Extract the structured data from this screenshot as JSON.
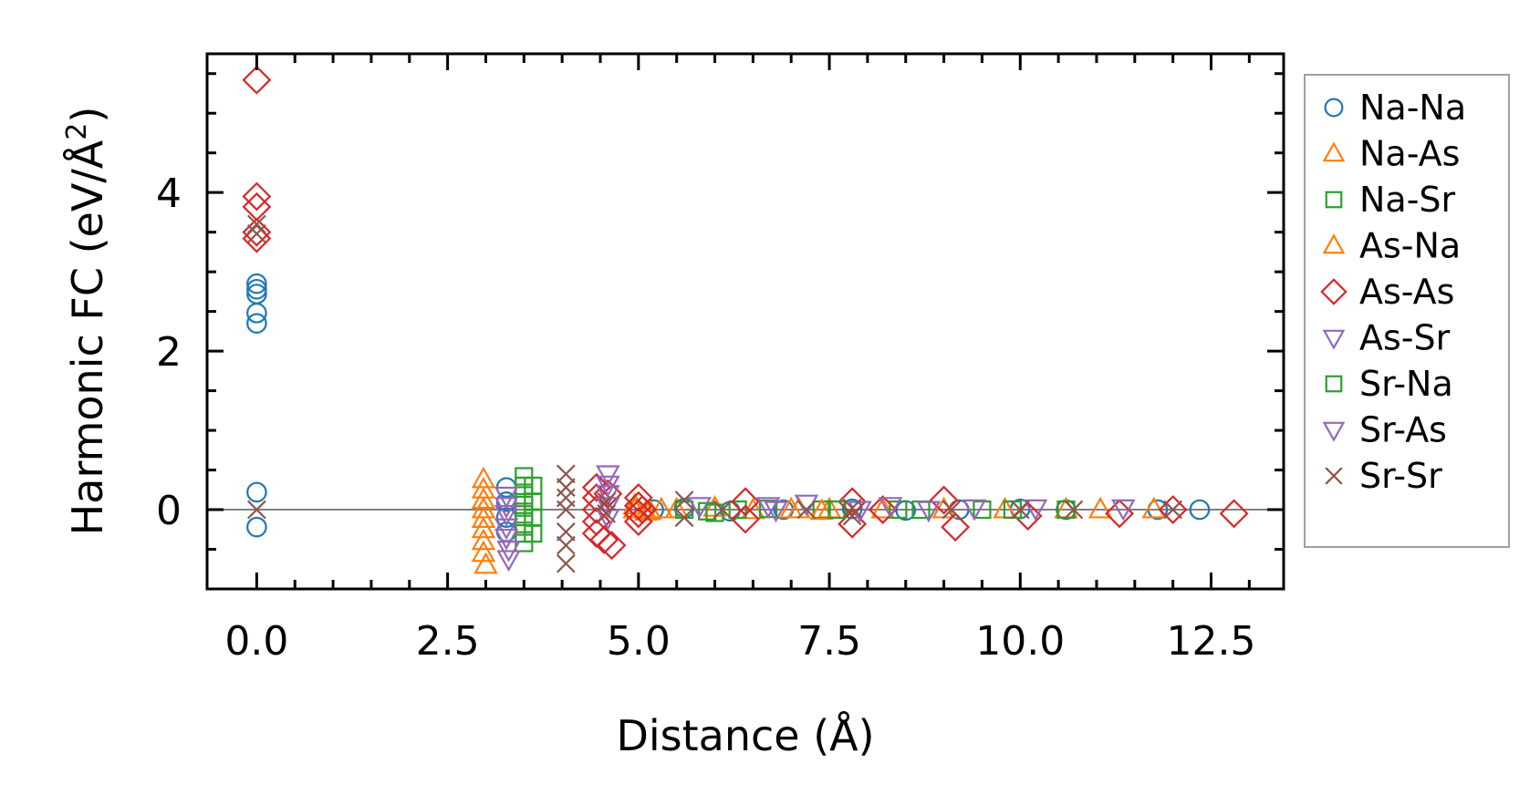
{
  "chart_data": {
    "type": "scatter",
    "title": "",
    "xlabel": "Distance (Å)",
    "ylabel_main": "Harmonic FC (eV/Å",
    "ylabel_sup": "2",
    "ylabel_end": ")",
    "xlim": [
      -0.65,
      13.45
    ],
    "ylim": [
      -1.0,
      5.75
    ],
    "xticks": [
      0.0,
      2.5,
      5.0,
      7.5,
      10.0,
      12.5
    ],
    "xtick_labels": [
      "0.0",
      "2.5",
      "5.0",
      "7.5",
      "10.0",
      "12.5"
    ],
    "yticks": [
      0,
      2,
      4
    ],
    "ytick_labels": [
      "0",
      "2",
      "4"
    ],
    "zero_line": true,
    "legend_position": "outside-right",
    "series": [
      {
        "name": "Na-Na",
        "marker": "circle",
        "color": "#1f77b4",
        "points": [
          [
            0,
            2.35
          ],
          [
            0,
            2.48
          ],
          [
            0,
            2.72
          ],
          [
            0,
            2.78
          ],
          [
            0,
            2.85
          ],
          [
            0,
            0.22
          ],
          [
            0,
            -0.22
          ],
          [
            3.27,
            0.28
          ],
          [
            3.27,
            0.1
          ],
          [
            3.27,
            -0.1
          ],
          [
            3.27,
            -0.28
          ],
          [
            5.2,
            0.0
          ],
          [
            5.6,
            0.02
          ],
          [
            6.2,
            -0.02
          ],
          [
            6.9,
            0.0
          ],
          [
            7.8,
            0.01
          ],
          [
            8.5,
            -0.01
          ],
          [
            9.2,
            0.0
          ],
          [
            10.0,
            0.01
          ],
          [
            10.6,
            0.0
          ],
          [
            11.8,
            0.0
          ],
          [
            12.35,
            0.0
          ]
        ]
      },
      {
        "name": "Na-As",
        "marker": "triangle-up",
        "color": "#ff7f0e",
        "points": [
          [
            2.97,
            0.38
          ],
          [
            2.97,
            0.25
          ],
          [
            2.97,
            0.12
          ],
          [
            2.97,
            0.0
          ],
          [
            2.97,
            -0.12
          ],
          [
            2.97,
            -0.25
          ],
          [
            2.97,
            -0.4
          ],
          [
            2.97,
            -0.55
          ],
          [
            3.0,
            -0.7
          ],
          [
            4.95,
            0.0
          ],
          [
            5.15,
            -0.02
          ],
          [
            5.5,
            0.0
          ],
          [
            6.0,
            0.02
          ],
          [
            6.5,
            -0.01
          ],
          [
            7.0,
            0.0
          ],
          [
            7.5,
            0.0
          ],
          [
            8.2,
            0.0
          ],
          [
            9.0,
            0.0
          ],
          [
            9.8,
            0.0
          ],
          [
            10.6,
            0.0
          ],
          [
            11.05,
            0.0
          ],
          [
            11.75,
            0.0
          ]
        ]
      },
      {
        "name": "Na-Sr",
        "marker": "square",
        "color": "#2ca02c",
        "points": [
          [
            3.5,
            0.42
          ],
          [
            3.5,
            0.3
          ],
          [
            3.5,
            0.18
          ],
          [
            3.5,
            0.06
          ],
          [
            3.5,
            -0.06
          ],
          [
            3.5,
            -0.18
          ],
          [
            3.5,
            -0.3
          ],
          [
            3.5,
            -0.42
          ],
          [
            3.62,
            0.3
          ],
          [
            3.62,
            0.1
          ],
          [
            3.62,
            -0.1
          ],
          [
            3.62,
            -0.3
          ],
          [
            5.6,
            0.0
          ],
          [
            5.9,
            -0.02
          ],
          [
            6.3,
            0.0
          ],
          [
            6.7,
            0.01
          ],
          [
            7.4,
            0.0
          ],
          [
            8.4,
            0.0
          ],
          [
            8.7,
            0.0
          ],
          [
            9.5,
            0.0
          ],
          [
            10.6,
            0.0
          ]
        ]
      },
      {
        "name": "As-Na",
        "marker": "triangle-up",
        "color": "#ff7f0e",
        "points": [
          [
            4.95,
            0.05
          ],
          [
            5.1,
            -0.03
          ],
          [
            5.3,
            0.0
          ],
          [
            7.1,
            0.0
          ],
          [
            7.4,
            -0.02
          ]
        ]
      },
      {
        "name": "As-As",
        "marker": "diamond",
        "color": "#d62728",
        "points": [
          [
            0,
            5.42
          ],
          [
            0,
            3.95
          ],
          [
            0,
            3.82
          ],
          [
            0,
            3.5
          ],
          [
            0,
            3.42
          ],
          [
            4.45,
            0.28
          ],
          [
            4.45,
            0.15
          ],
          [
            4.45,
            0.0
          ],
          [
            4.45,
            -0.15
          ],
          [
            4.45,
            -0.3
          ],
          [
            4.55,
            -0.38
          ],
          [
            4.65,
            -0.45
          ],
          [
            4.6,
            0.2
          ],
          [
            5.0,
            0.15
          ],
          [
            5.0,
            0.05
          ],
          [
            5.0,
            -0.05
          ],
          [
            5.0,
            -0.15
          ],
          [
            5.05,
            0.0
          ],
          [
            6.4,
            0.1
          ],
          [
            6.4,
            -0.12
          ],
          [
            7.8,
            0.1
          ],
          [
            7.8,
            -0.18
          ],
          [
            8.2,
            0.0
          ],
          [
            9.0,
            0.12
          ],
          [
            9.15,
            -0.22
          ],
          [
            10.1,
            -0.08
          ],
          [
            11.3,
            -0.05
          ],
          [
            12.0,
            0.0
          ],
          [
            12.8,
            -0.05
          ]
        ]
      },
      {
        "name": "As-Sr",
        "marker": "triangle-down",
        "color": "#9467bd",
        "points": [
          [
            3.27,
            0.18
          ],
          [
            3.27,
            0.05
          ],
          [
            3.27,
            -0.05
          ],
          [
            3.27,
            -0.22
          ],
          [
            3.27,
            -0.35
          ],
          [
            3.3,
            -0.5
          ],
          [
            3.3,
            -0.62
          ],
          [
            4.6,
            0.45
          ],
          [
            4.6,
            0.32
          ],
          [
            4.6,
            0.2
          ],
          [
            4.6,
            0.05
          ],
          [
            4.6,
            -0.1
          ],
          [
            5.8,
            0.05
          ],
          [
            6.7,
            0.05
          ],
          [
            6.8,
            0.0
          ],
          [
            7.2,
            0.08
          ],
          [
            8.3,
            0.05
          ],
          [
            8.8,
            0.0
          ],
          [
            9.4,
            0.02
          ]
        ]
      },
      {
        "name": "Sr-Na",
        "marker": "square",
        "color": "#2ca02c",
        "points": [
          [
            6.0,
            -0.04
          ],
          [
            7.6,
            0.0
          ],
          [
            9.9,
            0.0
          ]
        ]
      },
      {
        "name": "Sr-As",
        "marker": "triangle-down",
        "color": "#9467bd",
        "points": [
          [
            10.2,
            0.02
          ],
          [
            11.35,
            0.02
          ],
          [
            7.9,
            0.0
          ]
        ]
      },
      {
        "name": "Sr-Sr",
        "marker": "x",
        "color": "#8c564b",
        "points": [
          [
            0,
            3.6
          ],
          [
            0,
            3.48
          ],
          [
            0,
            0.0
          ],
          [
            4.05,
            0.45
          ],
          [
            4.05,
            0.28
          ],
          [
            4.05,
            0.15
          ],
          [
            4.05,
            0.0
          ],
          [
            4.05,
            -0.28
          ],
          [
            4.05,
            -0.45
          ],
          [
            4.05,
            -0.68
          ],
          [
            4.58,
            0.1
          ],
          [
            4.58,
            -0.05
          ],
          [
            5.6,
            0.12
          ],
          [
            5.6,
            -0.1
          ],
          [
            6.1,
            0.0
          ],
          [
            7.2,
            0.0
          ],
          [
            7.8,
            0.02
          ],
          [
            7.8,
            -0.08
          ],
          [
            9.1,
            0.0
          ],
          [
            10.0,
            0.0
          ],
          [
            10.7,
            0.0
          ],
          [
            12.0,
            0.0
          ]
        ]
      }
    ]
  }
}
